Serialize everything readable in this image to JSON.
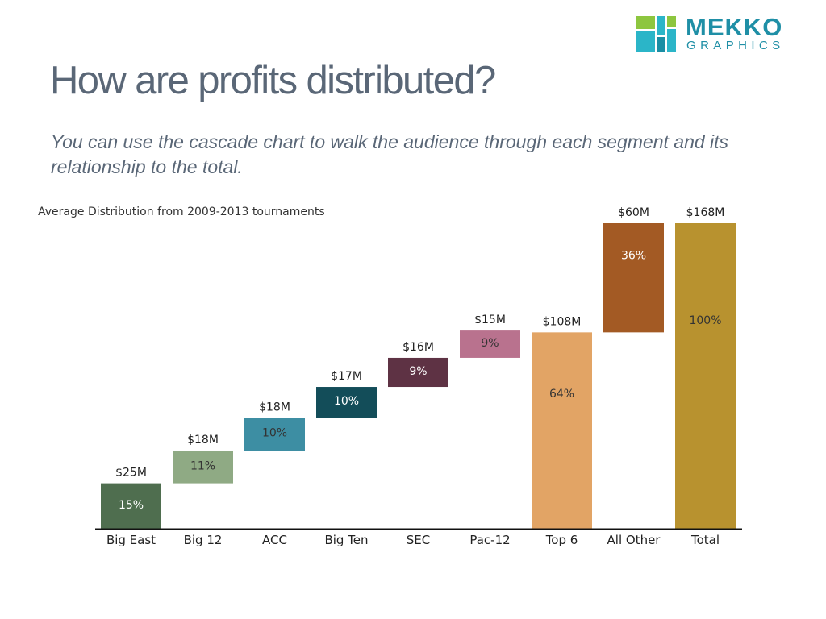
{
  "logo": {
    "word1": "MEKKO",
    "word2": "GRAPHICS",
    "colors": [
      "#8dc63f",
      "#2bb5c8",
      "#1a8ea4"
    ]
  },
  "title": "How are profits distributed?",
  "subtitle": "You can use the cascade chart to walk the audience through each segment and its relationship to the total.",
  "chart_data": {
    "type": "bar",
    "subtype": "cascade",
    "title": "Average Distribution from 2009-2013 tournaments",
    "unit": "$M",
    "ylim": [
      0,
      168
    ],
    "grid": false,
    "categories": [
      "Big East",
      "Big 12",
      "ACC",
      "Big Ten",
      "SEC",
      "Pac-12",
      "Top 6",
      "All Other",
      "Total"
    ],
    "values": [
      25,
      18,
      18,
      17,
      16,
      15,
      108,
      60,
      168
    ],
    "value_labels": [
      "$25M",
      "$18M",
      "$18M",
      "$17M",
      "$16M",
      "$15M",
      "$108M",
      "$60M",
      "$168M"
    ],
    "percent_labels": [
      "15%",
      "11%",
      "10%",
      "10%",
      "9%",
      "9%",
      "64%",
      "36%",
      "100%"
    ],
    "bases": [
      0,
      25,
      43,
      61,
      78,
      94,
      0,
      108,
      0
    ],
    "colors": [
      "#4f6e4f",
      "#8faa84",
      "#3d8ea3",
      "#134d59",
      "#5e3244",
      "#b9728e",
      "#e2a465",
      "#a35a24",
      "#b8922f"
    ],
    "label_colors": [
      "#ffffff",
      "#333333",
      "#333333",
      "#ffffff",
      "#ffffff",
      "#333333",
      "#333333",
      "#ffffff",
      "#333333"
    ]
  }
}
